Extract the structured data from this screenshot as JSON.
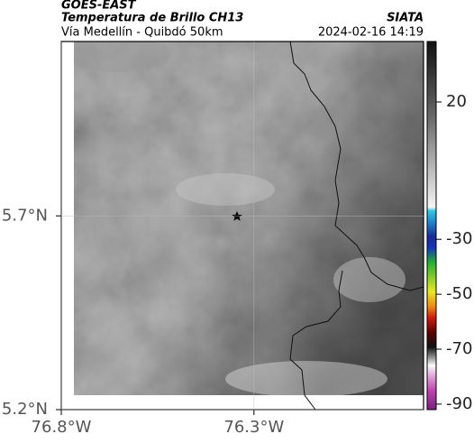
{
  "header": {
    "source": "GOES-EAST",
    "title": "Temperatura de Brillo CH13",
    "org": "SIATA",
    "subtitle": "Vía Medellín - Quibdó 50km",
    "timestamp": "2024-02-16 14:19"
  },
  "map": {
    "xlim": [
      -76.8,
      -75.86
    ],
    "ylim": [
      5.2,
      6.15
    ],
    "xticks": [
      {
        "value": -76.8,
        "label": "76.8°W"
      },
      {
        "value": -76.3,
        "label": "76.3°W"
      }
    ],
    "yticks": [
      {
        "value": 5.2,
        "label": "5.2°N"
      },
      {
        "value": 5.7,
        "label": "5.7°N"
      }
    ],
    "grid": true
  },
  "colorbar": {
    "lim": [
      -92,
      42
    ],
    "ticks": [
      20,
      -30,
      -50,
      -70,
      -90
    ]
  }
}
